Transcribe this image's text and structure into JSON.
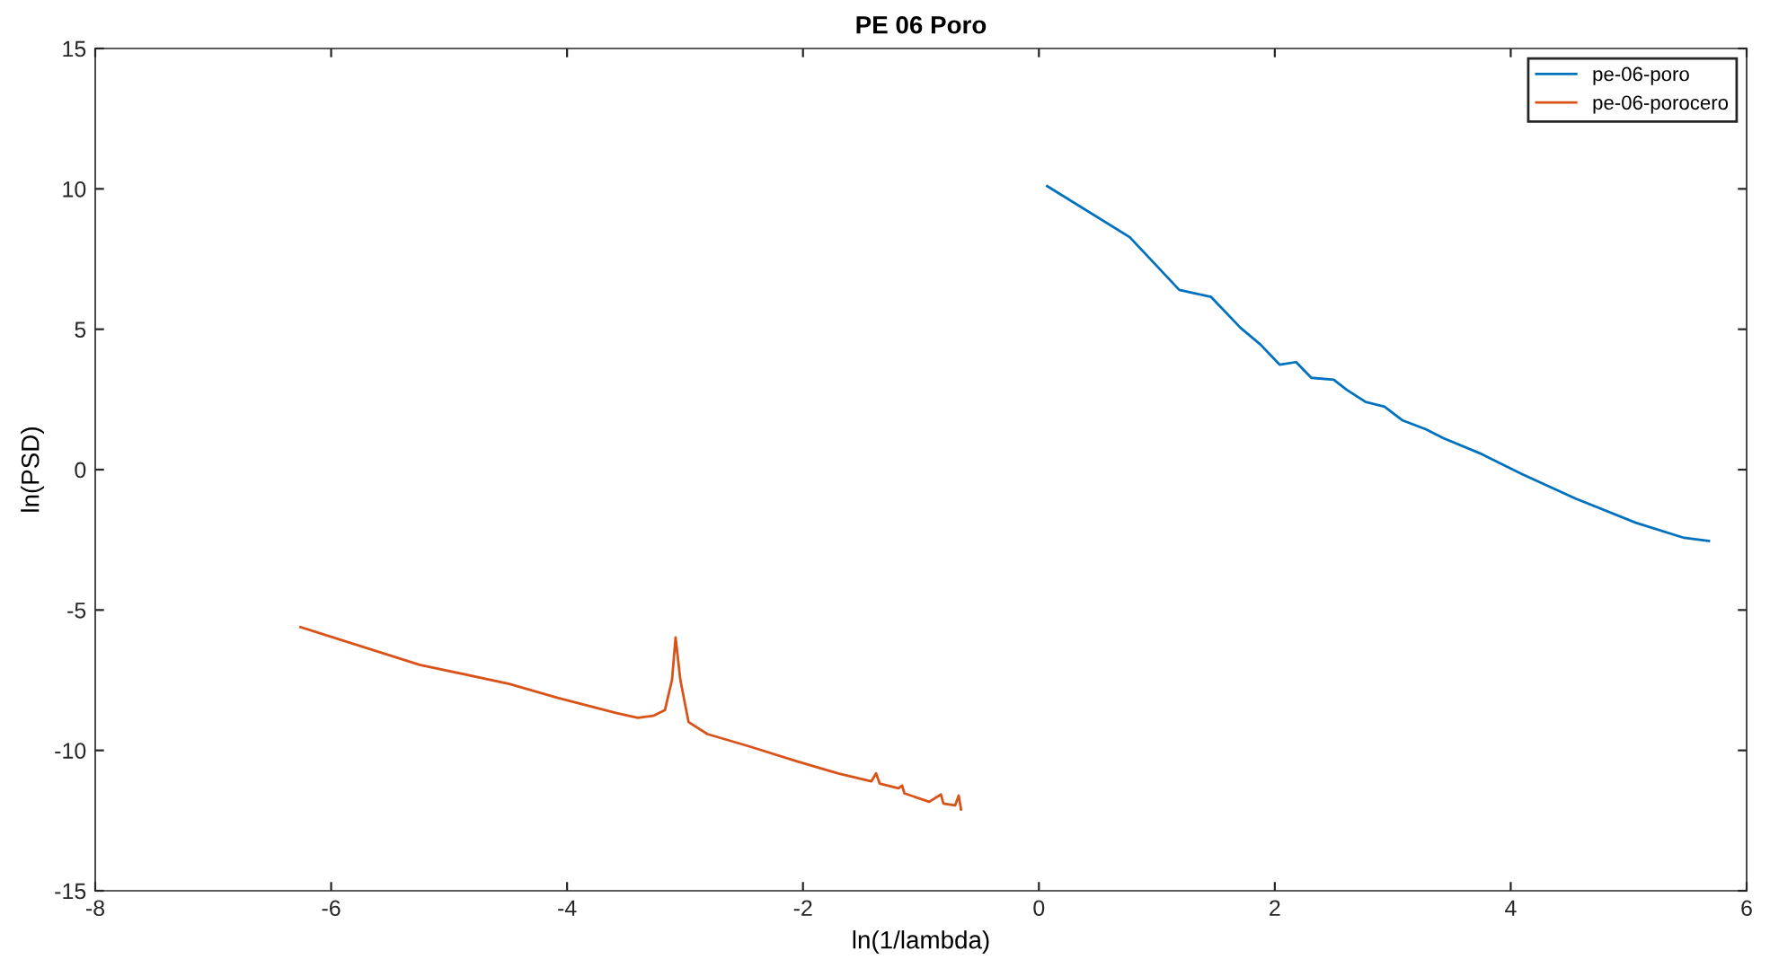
{
  "chart_data": {
    "type": "line",
    "title": "PE 06 Poro",
    "xlabel": "ln(1/lambda)",
    "ylabel": "ln(PSD)",
    "xlim": [
      -8,
      6
    ],
    "xticks": [
      -8,
      -6,
      -4,
      -2,
      0,
      2,
      4,
      6
    ],
    "ylim": [
      -15,
      15
    ],
    "yticks": [
      -15,
      -10,
      -5,
      0,
      5,
      10,
      15
    ],
    "grid": false,
    "legend": "top right",
    "marker": "none",
    "line_style": "solid",
    "series": [
      {
        "name": "pe-06-poro",
        "color": "#0072bd",
        "x": [
          0.07,
          0.77,
          1.19,
          1.46,
          1.71,
          1.88,
          2.04,
          2.18,
          2.31,
          2.5,
          2.61,
          2.77,
          2.93,
          3.08,
          3.28,
          3.43,
          3.74,
          4.1,
          4.55,
          5.06,
          5.47,
          5.68
        ],
        "values": [
          10.1,
          8.28,
          6.4,
          6.15,
          5.05,
          4.45,
          3.74,
          3.83,
          3.27,
          3.2,
          2.84,
          2.41,
          2.24,
          1.76,
          1.44,
          1.12,
          0.58,
          -0.17,
          -1.03,
          -1.89,
          -2.43,
          -2.54
        ]
      },
      {
        "name": "pe-06-porocero",
        "color": "#d95319",
        "x": [
          -6.26,
          -5.25,
          -4.49,
          -4.08,
          -3.58,
          -3.4,
          -3.27,
          -3.17,
          -3.11,
          -3.08,
          -3.04,
          -2.97,
          -2.81,
          -2.46,
          -2.05,
          -1.7,
          -1.42,
          -1.38,
          -1.35,
          -1.19,
          -1.16,
          -1.14,
          -0.93,
          -0.83,
          -0.81,
          -0.71,
          -0.68,
          -0.66
        ],
        "values": [
          -5.61,
          -6.95,
          -7.63,
          -8.13,
          -8.67,
          -8.84,
          -8.77,
          -8.56,
          -7.48,
          -5.98,
          -7.48,
          -8.99,
          -9.42,
          -9.85,
          -10.39,
          -10.82,
          -11.1,
          -10.82,
          -11.18,
          -11.35,
          -11.25,
          -11.53,
          -11.83,
          -11.57,
          -11.89,
          -11.96,
          -11.61,
          -12.1
        ]
      }
    ]
  }
}
